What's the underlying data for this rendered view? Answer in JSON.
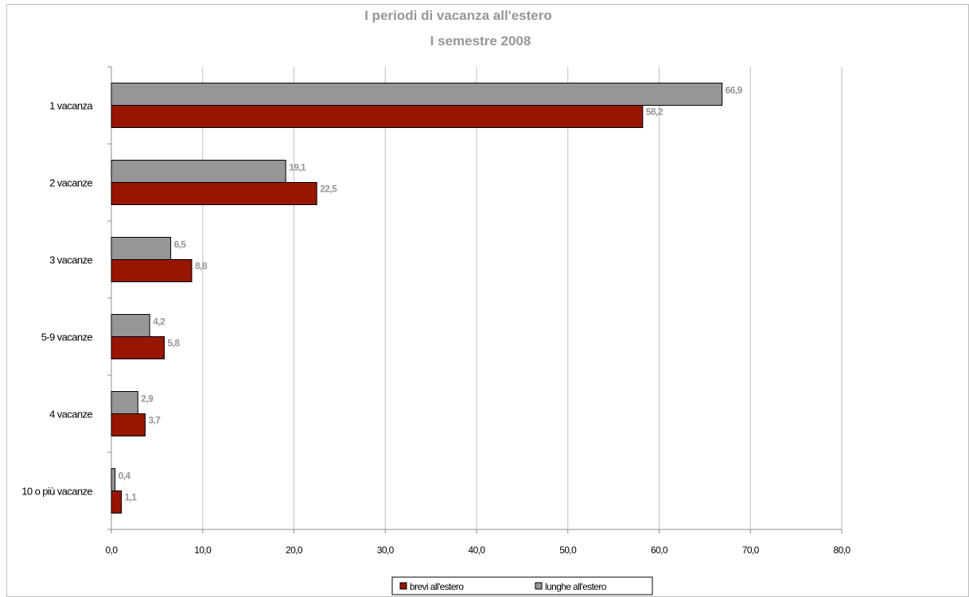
{
  "chart_data": {
    "type": "bar",
    "orientation": "horizontal",
    "title": "I periodi di vacanza all'estero",
    "subtitle": "I semestre 2008",
    "categories": [
      "1 vacanza",
      "2 vacanze",
      "3 vacanze",
      "5-9 vacanze",
      "4 vacanze",
      "10 o più vacanze"
    ],
    "series": [
      {
        "name": "brevi all'estero",
        "color": "#981500",
        "values": [
          58.2,
          22.5,
          8.8,
          5.8,
          3.7,
          1.1
        ],
        "labels": [
          "58,2",
          "22,5",
          "8,8",
          "5,8",
          "3,7",
          "1,1"
        ]
      },
      {
        "name": "lunghe all'estero",
        "color": "#969696",
        "values": [
          66.9,
          19.1,
          6.5,
          4.2,
          2.9,
          0.4
        ],
        "labels": [
          "66,9",
          "19,1",
          "6,5",
          "4,2",
          "2,9",
          "0,4"
        ]
      }
    ],
    "xlim": [
      0,
      80
    ],
    "xticks": [
      0,
      10,
      20,
      30,
      40,
      50,
      60,
      70,
      80
    ],
    "xtick_labels": [
      "0,0",
      "10,0",
      "20,0",
      "30,0",
      "40,0",
      "50,0",
      "60,0",
      "70,0",
      "80,0"
    ],
    "grid": "vertical",
    "legend_position": "bottom"
  }
}
